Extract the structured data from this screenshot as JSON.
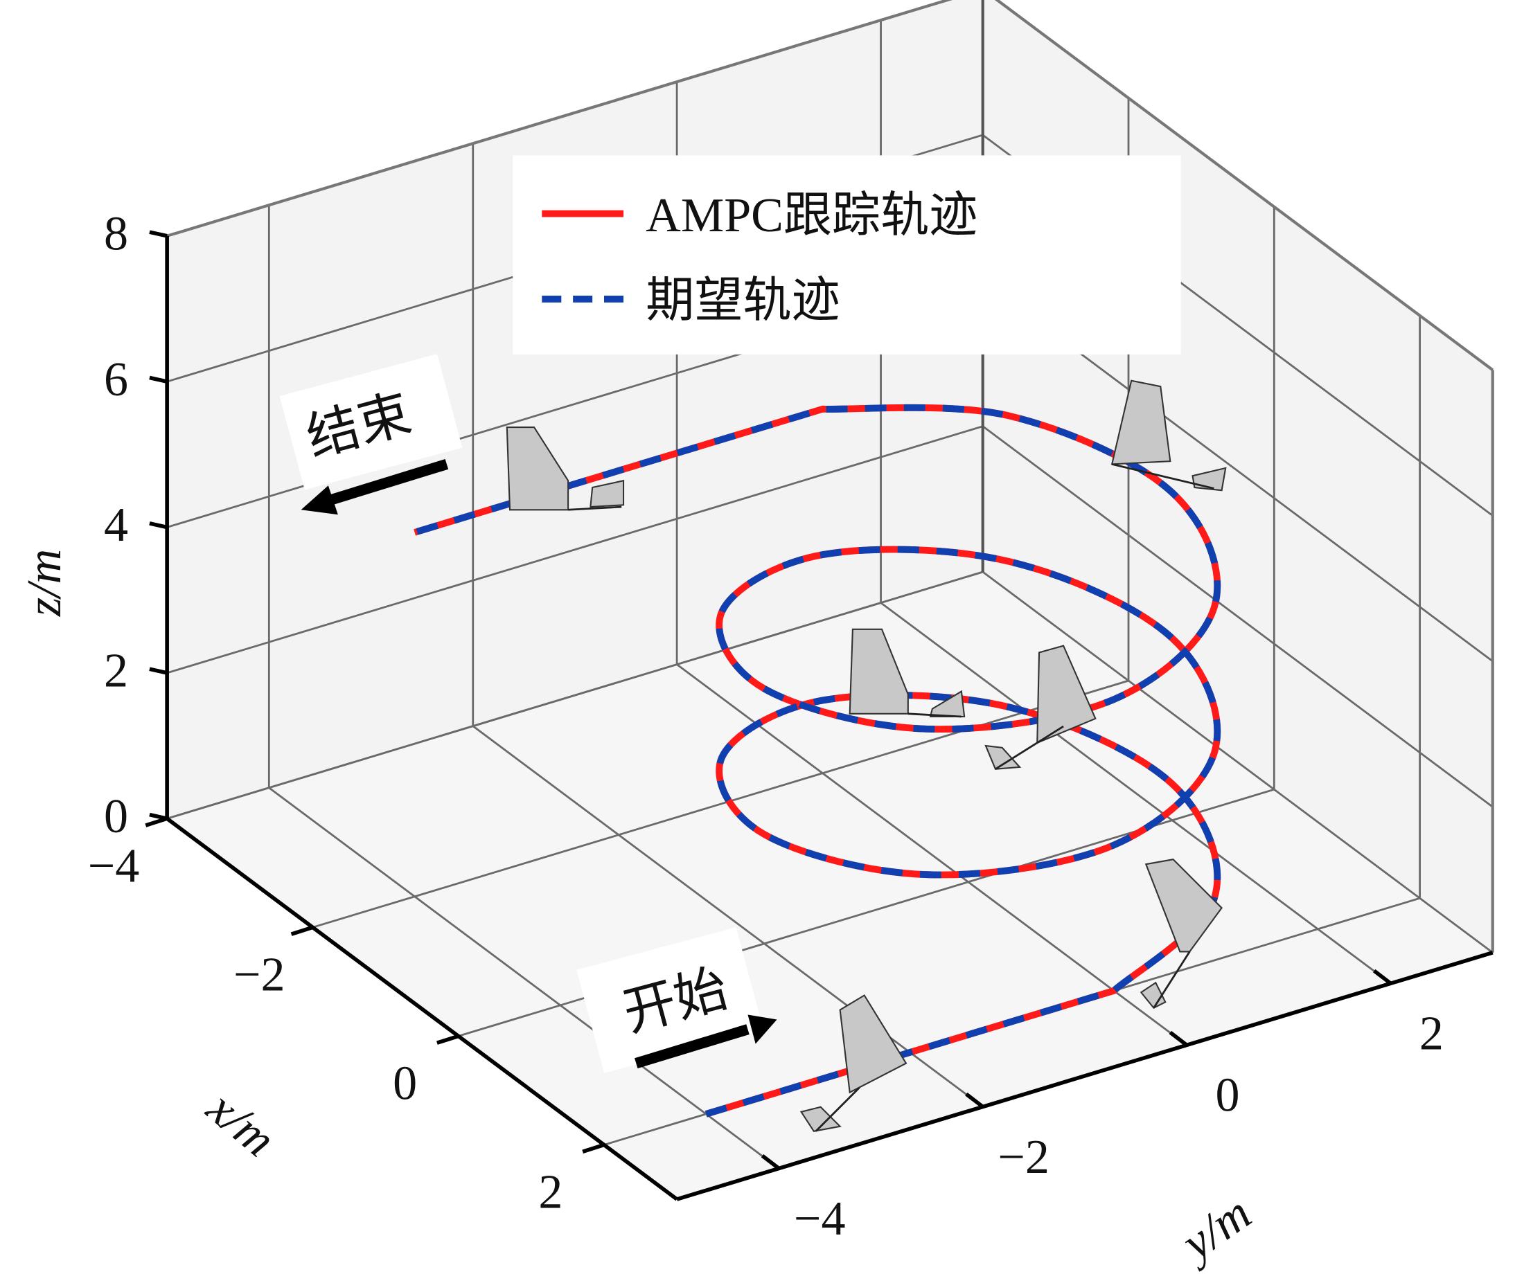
{
  "chart_data": {
    "type": "line3d",
    "title": "",
    "xlabel": "x/m",
    "ylabel": "y/m",
    "zlabel": "z/m",
    "xlim": [
      -4,
      3
    ],
    "ylim": [
      -5,
      3
    ],
    "zlim": [
      0,
      8
    ],
    "xticks": [
      -4,
      -2,
      0,
      2
    ],
    "yticks": [
      -4,
      -2,
      0,
      2
    ],
    "zticks": [
      0,
      2,
      4,
      6,
      8
    ],
    "xtick_labels": [
      "−4",
      "−2",
      "0",
      "2"
    ],
    "ytick_labels": [
      "−4",
      "−2",
      "0",
      "2"
    ],
    "ztick_labels": [
      "0",
      "2",
      "4",
      "6",
      "8"
    ],
    "grid": true,
    "legend_placement": "top-center",
    "legend": [
      "AMPC跟踪轨迹",
      "期望轨迹"
    ],
    "series": [
      {
        "name": "AMPC跟踪轨迹",
        "color": "#ff1a1a",
        "style": "solid",
        "points": [
          [
            2,
            -4,
            0
          ],
          [
            2,
            0,
            0
          ],
          [
            1.41,
            1.41,
            0.25
          ],
          [
            0,
            2,
            0.5
          ],
          [
            -1.41,
            1.41,
            0.75
          ],
          [
            -2,
            0,
            1
          ],
          [
            -1.41,
            -1.41,
            1.25
          ],
          [
            0,
            -2,
            1.5
          ],
          [
            1.41,
            -1.41,
            1.75
          ],
          [
            2,
            0,
            2
          ],
          [
            1.41,
            1.41,
            2.25
          ],
          [
            0,
            2,
            2.5
          ],
          [
            -1.41,
            1.41,
            2.75
          ],
          [
            -2,
            0,
            3
          ],
          [
            -1.41,
            -1.41,
            3.25
          ],
          [
            0,
            -2,
            3.5
          ],
          [
            1.41,
            -1.41,
            3.75
          ],
          [
            2,
            0,
            4
          ],
          [
            1.41,
            1.41,
            4.25
          ],
          [
            0,
            2,
            4.5
          ],
          [
            -1.41,
            1.41,
            4.75
          ],
          [
            -2,
            0,
            5
          ],
          [
            -2,
            -4,
            5
          ]
        ]
      },
      {
        "name": "期望轨迹",
        "color": "#1040b0",
        "style": "dashed",
        "points": [
          [
            2,
            -4,
            0
          ],
          [
            2,
            0,
            0
          ],
          [
            1.41,
            1.41,
            0.25
          ],
          [
            0,
            2,
            0.5
          ],
          [
            -1.41,
            1.41,
            0.75
          ],
          [
            -2,
            0,
            1
          ],
          [
            -1.41,
            -1.41,
            1.25
          ],
          [
            0,
            -2,
            1.5
          ],
          [
            1.41,
            -1.41,
            1.75
          ],
          [
            2,
            0,
            2
          ],
          [
            1.41,
            1.41,
            2.25
          ],
          [
            0,
            2,
            2.5
          ],
          [
            -1.41,
            1.41,
            2.75
          ],
          [
            -2,
            0,
            3
          ],
          [
            -1.41,
            -1.41,
            3.25
          ],
          [
            0,
            -2,
            3.5
          ],
          [
            1.41,
            -1.41,
            3.75
          ],
          [
            2,
            0,
            4
          ],
          [
            1.41,
            1.41,
            4.25
          ],
          [
            0,
            2,
            4.5
          ],
          [
            -1.41,
            1.41,
            4.75
          ],
          [
            -2,
            0,
            5
          ],
          [
            -2,
            -4,
            5
          ]
        ]
      }
    ],
    "annotations": {
      "start": "开始",
      "end": "结束"
    },
    "markers": "aircraft-icon"
  }
}
